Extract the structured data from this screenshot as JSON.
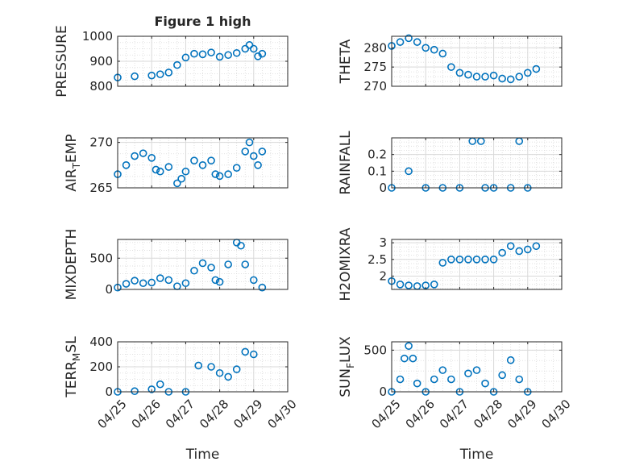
{
  "figure": {
    "background": "#ffffff",
    "axes_color": "#262626",
    "grid_color": "#d9d9d9",
    "marker_color": "#0072BD",
    "marker": "open-circle",
    "grid": true,
    "minor_grid": true
  },
  "chart_data": [
    {
      "type": "scatter",
      "title": "Figure 1 high",
      "ylabel": "PRESSURE",
      "xlabel": "",
      "xlim": [
        "04/25",
        "04/30"
      ],
      "ylim": [
        800,
        1000
      ],
      "yticks": [
        "800",
        "900",
        "1000"
      ],
      "xticks": [
        "04/25",
        "04/26",
        "04/27",
        "04/28",
        "04/29",
        "04/30"
      ],
      "show_xticklabels": false,
      "series": [
        {
          "points": [
            [
              "04/25 00:00",
              835
            ],
            [
              "04/25 12:00",
              840
            ],
            [
              "04/26 00:00",
              843
            ],
            [
              "04/26 06:00",
              848
            ],
            [
              "04/26 12:00",
              855
            ],
            [
              "04/26 18:00",
              885
            ],
            [
              "04/27 00:00",
              915
            ],
            [
              "04/27 06:00",
              930
            ],
            [
              "04/27 12:00",
              928
            ],
            [
              "04/27 18:00",
              935
            ],
            [
              "04/28 00:00",
              918
            ],
            [
              "04/28 06:00",
              925
            ],
            [
              "04/28 12:00",
              933
            ],
            [
              "04/28 18:00",
              950
            ],
            [
              "04/28 21:00",
              965
            ],
            [
              "04/29 00:00",
              950
            ],
            [
              "04/29 03:00",
              920
            ],
            [
              "04/29 06:00",
              930
            ]
          ]
        }
      ]
    },
    {
      "type": "scatter",
      "title": "",
      "ylabel": "THETA",
      "xlabel": "",
      "xlim": [
        "04/25",
        "04/30"
      ],
      "ylim": [
        270,
        283
      ],
      "yticks": [
        "270",
        "275",
        "280"
      ],
      "xticks": [
        "04/25",
        "04/26",
        "04/27",
        "04/28",
        "04/29",
        "04/30"
      ],
      "show_xticklabels": false,
      "series": [
        {
          "points": [
            [
              "04/25 00:00",
              280.5
            ],
            [
              "04/25 06:00",
              281.5
            ],
            [
              "04/25 12:00",
              282.5
            ],
            [
              "04/25 18:00",
              281.5
            ],
            [
              "04/26 00:00",
              280
            ],
            [
              "04/26 06:00",
              279.5
            ],
            [
              "04/26 12:00",
              278.5
            ],
            [
              "04/26 18:00",
              275
            ],
            [
              "04/27 00:00",
              273.5
            ],
            [
              "04/27 06:00",
              273
            ],
            [
              "04/27 12:00",
              272.5
            ],
            [
              "04/27 18:00",
              272.5
            ],
            [
              "04/28 00:00",
              272.8
            ],
            [
              "04/28 06:00",
              272
            ],
            [
              "04/28 12:00",
              271.8
            ],
            [
              "04/28 18:00",
              272.5
            ],
            [
              "04/29 00:00",
              273.5
            ],
            [
              "04/29 06:00",
              274.5
            ]
          ]
        }
      ]
    },
    {
      "type": "scatter",
      "title": "",
      "ylabel": "AIR",
      "ylabel_sub": "T",
      "ylabel_rest": "EMP",
      "xlabel": "",
      "xlim": [
        "04/25",
        "04/30"
      ],
      "ylim": [
        265,
        270.5
      ],
      "yticks": [
        "265",
        "270"
      ],
      "xticks": [
        "04/25",
        "04/26",
        "04/27",
        "04/28",
        "04/29",
        "04/30"
      ],
      "show_xticklabels": false,
      "series": [
        {
          "points": [
            [
              "04/25 00:00",
              266.5
            ],
            [
              "04/25 06:00",
              267.5
            ],
            [
              "04/25 12:00",
              268.5
            ],
            [
              "04/25 18:00",
              268.8
            ],
            [
              "04/26 00:00",
              268.3
            ],
            [
              "04/26 03:00",
              267.0
            ],
            [
              "04/26 06:00",
              266.8
            ],
            [
              "04/26 12:00",
              267.3
            ],
            [
              "04/26 18:00",
              265.5
            ],
            [
              "04/26 21:00",
              266.0
            ],
            [
              "04/27 00:00",
              266.8
            ],
            [
              "04/27 06:00",
              268.0
            ],
            [
              "04/27 12:00",
              267.5
            ],
            [
              "04/27 18:00",
              268.0
            ],
            [
              "04/27 21:00",
              266.5
            ],
            [
              "04/28 00:00",
              266.3
            ],
            [
              "04/28 06:00",
              266.5
            ],
            [
              "04/28 12:00",
              267.2
            ],
            [
              "04/28 18:00",
              269.0
            ],
            [
              "04/28 21:00",
              270.0
            ],
            [
              "04/29 00:00",
              268.5
            ],
            [
              "04/29 03:00",
              267.5
            ],
            [
              "04/29 06:00",
              269.0
            ]
          ]
        }
      ]
    },
    {
      "type": "scatter",
      "title": "",
      "ylabel": "RAINFALL",
      "xlabel": "",
      "xlim": [
        "04/25",
        "04/30"
      ],
      "ylim": [
        0,
        0.3
      ],
      "yticks": [
        "0",
        "0.1",
        "0.2"
      ],
      "xticks": [
        "04/25",
        "04/26",
        "04/27",
        "04/28",
        "04/29",
        "04/30"
      ],
      "show_xticklabels": false,
      "series": [
        {
          "points": [
            [
              "04/25 00:00",
              0
            ],
            [
              "04/25 12:00",
              0.1
            ],
            [
              "04/26 00:00",
              0
            ],
            [
              "04/26 12:00",
              0
            ],
            [
              "04/27 00:00",
              0
            ],
            [
              "04/27 09:00",
              0.28
            ],
            [
              "04/27 15:00",
              0.28
            ],
            [
              "04/27 18:00",
              0
            ],
            [
              "04/28 00:00",
              0
            ],
            [
              "04/28 12:00",
              0
            ],
            [
              "04/28 18:00",
              0.28
            ],
            [
              "04/29 00:00",
              0
            ]
          ]
        }
      ]
    },
    {
      "type": "scatter",
      "title": "",
      "ylabel": "MIXDEPTH",
      "xlabel": "",
      "xlim": [
        "04/25",
        "04/30"
      ],
      "ylim": [
        0,
        800
      ],
      "yticks": [
        "0",
        "500"
      ],
      "xticks": [
        "04/25",
        "04/26",
        "04/27",
        "04/28",
        "04/29",
        "04/30"
      ],
      "show_xticklabels": false,
      "series": [
        {
          "points": [
            [
              "04/25 00:00",
              30
            ],
            [
              "04/25 06:00",
              90
            ],
            [
              "04/25 12:00",
              140
            ],
            [
              "04/25 18:00",
              100
            ],
            [
              "04/26 00:00",
              110
            ],
            [
              "04/26 06:00",
              180
            ],
            [
              "04/26 12:00",
              150
            ],
            [
              "04/26 18:00",
              50
            ],
            [
              "04/27 00:00",
              100
            ],
            [
              "04/27 06:00",
              300
            ],
            [
              "04/27 12:00",
              420
            ],
            [
              "04/27 18:00",
              350
            ],
            [
              "04/27 21:00",
              150
            ],
            [
              "04/28 00:00",
              120
            ],
            [
              "04/28 06:00",
              400
            ],
            [
              "04/28 12:00",
              750
            ],
            [
              "04/28 15:00",
              700
            ],
            [
              "04/28 18:00",
              400
            ],
            [
              "04/29 00:00",
              150
            ],
            [
              "04/29 06:00",
              30
            ]
          ]
        }
      ]
    },
    {
      "type": "scatter",
      "title": "",
      "ylabel": "H2OMIXRA",
      "xlabel": "",
      "xlim": [
        "04/25",
        "04/30"
      ],
      "ylim": [
        1.6,
        3.1
      ],
      "yticks": [
        "2",
        "2.5",
        "3"
      ],
      "xticks": [
        "04/25",
        "04/26",
        "04/27",
        "04/28",
        "04/29",
        "04/30"
      ],
      "show_xticklabels": false,
      "series": [
        {
          "points": [
            [
              "04/25 00:00",
              1.85
            ],
            [
              "04/25 06:00",
              1.75
            ],
            [
              "04/25 12:00",
              1.72
            ],
            [
              "04/25 18:00",
              1.7
            ],
            [
              "04/26 00:00",
              1.72
            ],
            [
              "04/26 06:00",
              1.75
            ],
            [
              "04/26 12:00",
              2.4
            ],
            [
              "04/26 18:00",
              2.5
            ],
            [
              "04/27 00:00",
              2.5
            ],
            [
              "04/27 06:00",
              2.5
            ],
            [
              "04/27 12:00",
              2.5
            ],
            [
              "04/27 18:00",
              2.5
            ],
            [
              "04/28 00:00",
              2.5
            ],
            [
              "04/28 06:00",
              2.7
            ],
            [
              "04/28 12:00",
              2.9
            ],
            [
              "04/28 18:00",
              2.75
            ],
            [
              "04/29 00:00",
              2.8
            ],
            [
              "04/29 06:00",
              2.9
            ]
          ]
        }
      ]
    },
    {
      "type": "scatter",
      "title": "",
      "ylabel": "TERR",
      "ylabel_sub": "M",
      "ylabel_rest": "SL",
      "xlabel": "Time",
      "xlim": [
        "04/25",
        "04/30"
      ],
      "ylim": [
        0,
        400
      ],
      "yticks": [
        "0",
        "200",
        "400"
      ],
      "xticks": [
        "04/25",
        "04/26",
        "04/27",
        "04/28",
        "04/29",
        "04/30"
      ],
      "show_xticklabels": true,
      "series": [
        {
          "points": [
            [
              "04/25 00:00",
              0
            ],
            [
              "04/25 12:00",
              5
            ],
            [
              "04/26 00:00",
              20
            ],
            [
              "04/26 06:00",
              60
            ],
            [
              "04/26 12:00",
              0
            ],
            [
              "04/27 00:00",
              0
            ],
            [
              "04/27 09:00",
              210
            ],
            [
              "04/27 18:00",
              200
            ],
            [
              "04/28 00:00",
              150
            ],
            [
              "04/28 06:00",
              120
            ],
            [
              "04/28 12:00",
              180
            ],
            [
              "04/28 18:00",
              320
            ],
            [
              "04/29 00:00",
              300
            ]
          ]
        }
      ]
    },
    {
      "type": "scatter",
      "title": "",
      "ylabel": "SUN",
      "ylabel_sub": "F",
      "ylabel_rest": "LUX",
      "xlabel": "Time",
      "xlim": [
        "04/25",
        "04/30"
      ],
      "ylim": [
        0,
        600
      ],
      "yticks": [
        "0",
        "500"
      ],
      "xticks": [
        "04/25",
        "04/26",
        "04/27",
        "04/28",
        "04/29",
        "04/30"
      ],
      "show_xticklabels": true,
      "series": [
        {
          "points": [
            [
              "04/25 00:00",
              0
            ],
            [
              "04/25 06:00",
              150
            ],
            [
              "04/25 09:00",
              400
            ],
            [
              "04/25 12:00",
              550
            ],
            [
              "04/25 15:00",
              400
            ],
            [
              "04/25 18:00",
              100
            ],
            [
              "04/26 00:00",
              0
            ],
            [
              "04/26 06:00",
              150
            ],
            [
              "04/26 12:00",
              260
            ],
            [
              "04/26 18:00",
              150
            ],
            [
              "04/27 00:00",
              0
            ],
            [
              "04/27 06:00",
              220
            ],
            [
              "04/27 12:00",
              260
            ],
            [
              "04/27 18:00",
              100
            ],
            [
              "04/28 00:00",
              0
            ],
            [
              "04/28 06:00",
              200
            ],
            [
              "04/28 12:00",
              380
            ],
            [
              "04/28 18:00",
              150
            ],
            [
              "04/29 00:00",
              0
            ]
          ]
        }
      ]
    }
  ]
}
